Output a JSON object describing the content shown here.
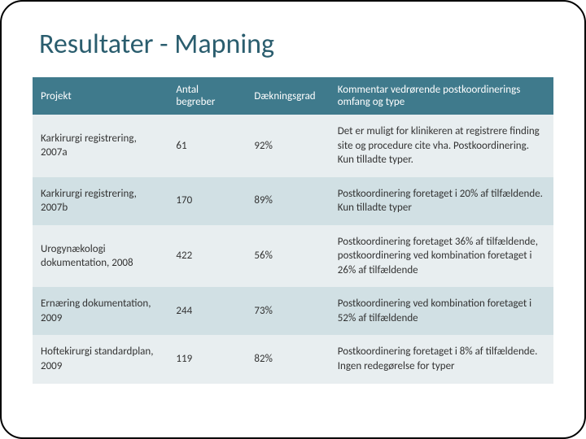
{
  "title": "Resultater - Mapning",
  "table": {
    "header_bg": "#3f7a8c",
    "header_color": "#ffffff",
    "row_odd_bg": "#e8eef0",
    "row_even_bg": "#d1e0e4",
    "columns": [
      {
        "label": "Projekt",
        "width": "26%"
      },
      {
        "label": "Antal begreber",
        "width": "15%"
      },
      {
        "label": "Dækningsgrad",
        "width": "16%"
      },
      {
        "label": "Kommentar vedrørende postkoordinerings omfang og type",
        "width": "43%"
      }
    ],
    "rows": [
      {
        "c0": "Karkirurgi registrering, 2007a",
        "c1": "61",
        "c2": "92%",
        "c3": "Det er muligt for klinikeren at registrere finding site og procedure cite vha. Postkoordinering. Kun tilladte typer."
      },
      {
        "c0": "Karkirurgi registrering, 2007b",
        "c1": "170",
        "c2": "89%",
        "c3": "Postkoordinering foretaget i 20% af tilfældende. Kun tilladte typer"
      },
      {
        "c0": "Urogynækologi dokumentation, 2008",
        "c1": "422",
        "c2": "56%",
        "c3": "Postkoordinering foretaget 36% af tilfældende, postkoordinering ved kombination foretaget i 26% af tilfældende"
      },
      {
        "c0": "Ernæring dokumentation, 2009",
        "c1": "244",
        "c2": "73%",
        "c3": "Postkoordinering ved kombination foretaget i 52% af tilfældende"
      },
      {
        "c0": "Hoftekirurgi standardplan, 2009",
        "c1": "119",
        "c2": "82%",
        "c3": "Postkoordinering foretaget i 8% af tilfældende. Ingen redegørelse for typer"
      }
    ]
  }
}
